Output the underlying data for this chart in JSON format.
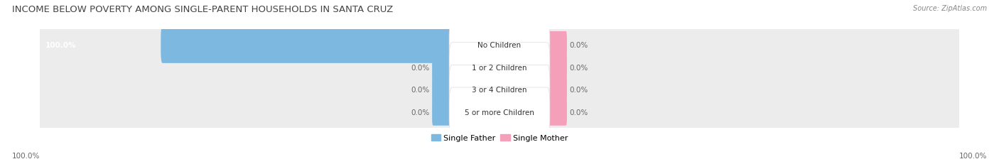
{
  "title": "INCOME BELOW POVERTY AMONG SINGLE-PARENT HOUSEHOLDS IN SANTA CRUZ",
  "source": "Source: ZipAtlas.com",
  "categories": [
    "No Children",
    "1 or 2 Children",
    "3 or 4 Children",
    "5 or more Children"
  ],
  "single_father": [
    100.0,
    0.0,
    0.0,
    0.0
  ],
  "single_mother": [
    0.0,
    0.0,
    0.0,
    0.0
  ],
  "bar_max": 100.0,
  "father_color": "#7DB8E0",
  "mother_color": "#F4A0BB",
  "row_bg_color": "#ECECEC",
  "label_bg_color": "#FFFFFF",
  "title_fontsize": 9.5,
  "label_fontsize": 7.5,
  "value_fontsize": 7.5,
  "source_fontsize": 7,
  "legend_fontsize": 8,
  "stub_size": 5.5,
  "bottom_left_label": "100.0%",
  "bottom_right_label": "100.0%"
}
